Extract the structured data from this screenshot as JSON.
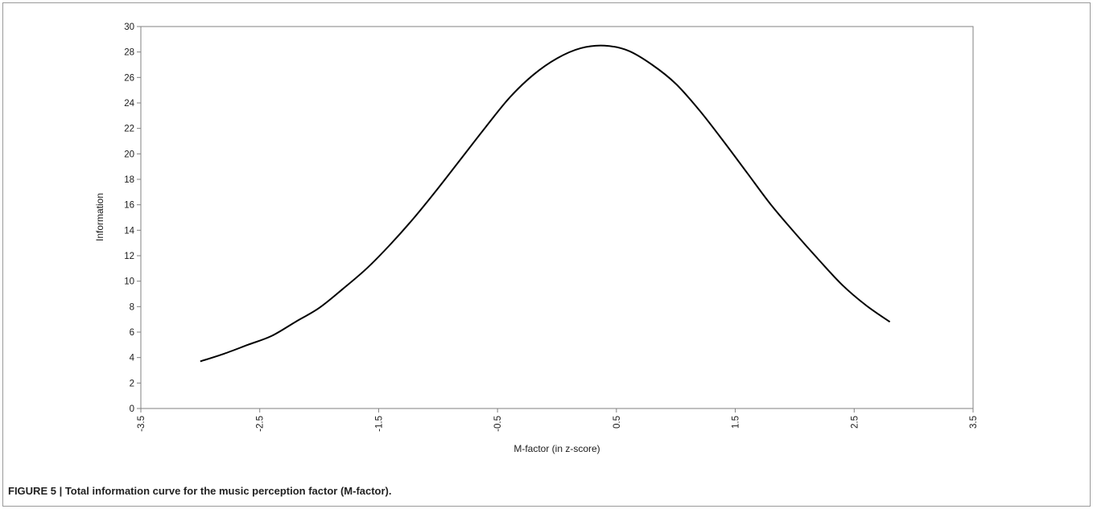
{
  "caption": "FIGURE 5 | Total information curve for the music perception factor (M-factor).",
  "chart_data": {
    "type": "line",
    "title": "",
    "xlabel": "M-factor (in z-score)",
    "ylabel": "Information",
    "xlim": [
      -3.5,
      3.5
    ],
    "ylim": [
      0,
      30
    ],
    "x_ticks": [
      -3.5,
      -2.5,
      -1.5,
      -0.5,
      0.5,
      1.5,
      2.5,
      3.5
    ],
    "y_ticks": [
      0,
      2,
      4,
      6,
      8,
      10,
      12,
      14,
      16,
      18,
      20,
      22,
      24,
      26,
      28,
      30
    ],
    "x_tick_labels": [
      "-3.5",
      "-2.5",
      "-1.5",
      "-0.5",
      "0.5",
      "1.5",
      "2.5",
      "3.5"
    ],
    "y_tick_labels": [
      "0",
      "2",
      "4",
      "6",
      "8",
      "10",
      "12",
      "14",
      "16",
      "18",
      "20",
      "22",
      "24",
      "26",
      "28",
      "30"
    ],
    "grid": false,
    "series": [
      {
        "color": "#000000",
        "x": [
          -3.0,
          -2.8,
          -2.6,
          -2.4,
          -2.2,
          -2.0,
          -1.8,
          -1.6,
          -1.4,
          -1.2,
          -1.0,
          -0.8,
          -0.6,
          -0.4,
          -0.2,
          0.0,
          0.2,
          0.4,
          0.6,
          0.8,
          1.0,
          1.2,
          1.4,
          1.6,
          1.8,
          2.0,
          2.2,
          2.4,
          2.6,
          2.8
        ],
        "y": [
          3.7,
          4.3,
          5.0,
          5.7,
          6.8,
          7.9,
          9.4,
          11.0,
          12.9,
          15.0,
          17.3,
          19.7,
          22.1,
          24.4,
          26.2,
          27.5,
          28.3,
          28.5,
          28.1,
          27.0,
          25.5,
          23.4,
          21.0,
          18.5,
          16.0,
          13.8,
          11.7,
          9.7,
          8.1,
          6.8
        ]
      }
    ]
  }
}
